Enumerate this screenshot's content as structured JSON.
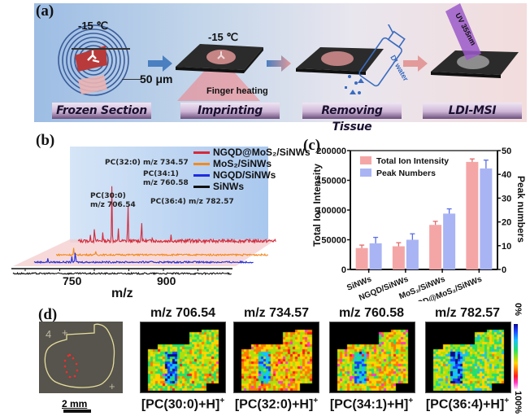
{
  "panel_labels": {
    "a": "(a)",
    "b": "(b)",
    "c": "(c)",
    "d": "(d)"
  },
  "workflow": {
    "steps": [
      {
        "label": "Frozen Section"
      },
      {
        "label": "Imprinting"
      },
      {
        "label": "Removing Tissue"
      },
      {
        "label": "LDI-MSI"
      }
    ],
    "temp_1": "-15 ℃",
    "temp_2": "-15 ℃",
    "thickness": "50 μm",
    "heating": "Finger heating",
    "bottle": "DI water",
    "laser": "UV 355nm",
    "colors": {
      "arrow_blue": "#4a7fc0",
      "arrow_pink": "#e39a9a",
      "laser": "#9b59c9",
      "slide": "#2b2b2b",
      "tissue": "#b83a3a"
    }
  },
  "chart_data": [
    {
      "type": "line",
      "title": "",
      "xlabel": "m/z",
      "ylabel": "",
      "x_ticks": [
        "750",
        "900"
      ],
      "xlim": [
        680,
        1000
      ],
      "legend_position": "top-right",
      "series": [
        {
          "name": "NGQD@MoS₂/SiNWs",
          "color": "#d42a3a"
        },
        {
          "name": "MoS₂/SiNWs",
          "color": "#f28a1e"
        },
        {
          "name": "NGQD/SiNWs",
          "color": "#1f2be0"
        },
        {
          "name": "SiNWs",
          "color": "#111111"
        }
      ],
      "annotations": [
        {
          "text": "PC(30:0)",
          "text2": "m/z 706.54",
          "mz": 706.54
        },
        {
          "text": "PC(32:0) m/z 734.57",
          "text2": "",
          "mz": 734.57
        },
        {
          "text": "PC(34:1)",
          "text2": "m/z 760.58",
          "mz": 760.58
        },
        {
          "text": "PC(36:4) m/z 782.57",
          "text2": "",
          "mz": 782.57
        }
      ]
    },
    {
      "type": "bar",
      "title": "",
      "categories": [
        "SiNWs",
        "NGQD/SiNWs",
        "MoS₂/SiNWs",
        "NGQD@MoS₂/SiNWs"
      ],
      "ylabel": "Total Ion Intensity",
      "y2label": "Peak numbers",
      "ylim": [
        0,
        200000
      ],
      "y2lim": [
        0,
        50
      ],
      "y_ticks": [
        "0",
        "50000",
        "100000",
        "150000",
        "200000"
      ],
      "y2_ticks": [
        "0",
        "10",
        "20",
        "30",
        "40",
        "50"
      ],
      "legend_position": "top-left",
      "series": [
        {
          "name": "Total Ion Intensity",
          "axis": "left",
          "color": "#f4a6a6",
          "err_color": "#e26a6a",
          "values": [
            36000,
            39000,
            75000,
            181000
          ],
          "errors": [
            5000,
            6000,
            6000,
            5000
          ]
        },
        {
          "name": "Peak Numbers",
          "axis": "right",
          "color": "#a9b4f4",
          "err_color": "#5a6fe6",
          "values": [
            11,
            12.5,
            23.5,
            42.5
          ],
          "errors": [
            2.5,
            2.5,
            2,
            3.5
          ]
        }
      ]
    }
  ],
  "imaging": {
    "scale_bar": "2 mm",
    "colorbar_top": "0%",
    "colorbar_bottom": "100%",
    "maps": [
      {
        "title": "m/z 706.54",
        "caption": "[PC(30:0)+H]",
        "sup": "+"
      },
      {
        "title": "m/z 734.57",
        "caption": "[PC(32:0)+H]",
        "sup": "+"
      },
      {
        "title": "m/z 760.58",
        "caption": "[PC(34:1)+H]",
        "sup": "+"
      },
      {
        "title": "m/z 782.57",
        "caption": "[PC(36:4)+H]",
        "sup": "+"
      }
    ]
  }
}
